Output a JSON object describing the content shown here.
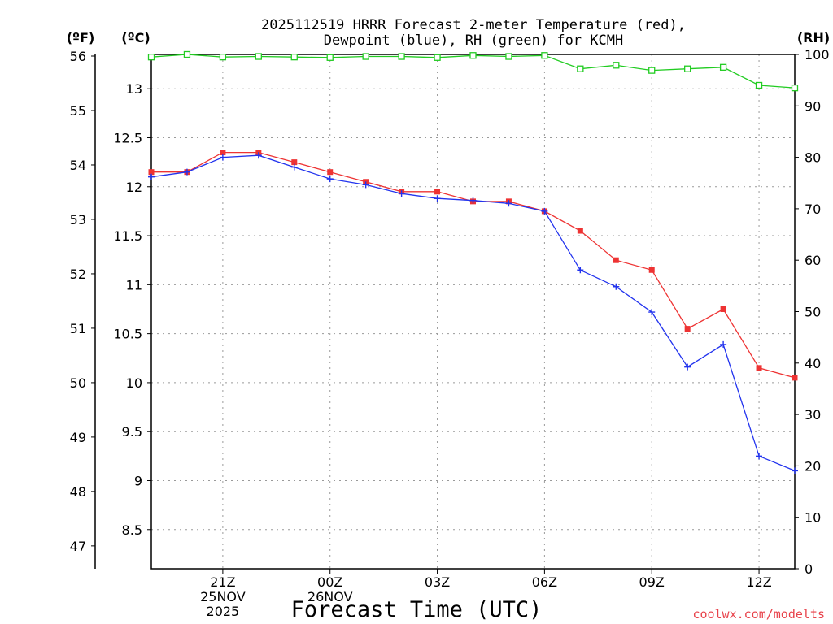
{
  "chart_data": {
    "type": "line",
    "title": [
      "2025112519 HRRR Forecast 2-meter Temperature (red),",
      "Dewpoint (blue), RH (green) for KCMH"
    ],
    "xlabel": "Forecast Time (UTC)",
    "credit": "coolwx.com/modelts",
    "y_left_unit": "(ºC)",
    "y_farenheit_unit": "(ºF)",
    "y_right_unit": "(RH)",
    "x_hours": [
      0,
      1,
      2,
      3,
      4,
      5,
      6,
      7,
      8,
      9,
      10,
      11,
      12,
      13,
      14,
      15,
      16,
      17,
      18
    ],
    "x_ticks": [
      {
        "hour": 2,
        "lines": [
          "21Z",
          "25NOV",
          "2025"
        ]
      },
      {
        "hour": 5,
        "lines": [
          "00Z",
          "26NOV"
        ]
      },
      {
        "hour": 8,
        "lines": [
          "03Z"
        ]
      },
      {
        "hour": 11,
        "lines": [
          "06Z"
        ]
      },
      {
        "hour": 14,
        "lines": [
          "09Z"
        ]
      },
      {
        "hour": 17,
        "lines": [
          "12Z"
        ]
      }
    ],
    "celsius_axis": {
      "min": 8.1,
      "max": 13.35,
      "ticks": [
        8.5,
        9,
        9.5,
        10,
        10.5,
        11,
        11.5,
        12,
        12.5,
        13
      ]
    },
    "fahrenheit_axis": {
      "ticks": [
        47,
        48,
        49,
        50,
        51,
        52,
        53,
        54,
        55,
        56
      ]
    },
    "rh_axis": {
      "min": 0,
      "max": 100,
      "ticks": [
        0,
        10,
        20,
        30,
        40,
        50,
        60,
        70,
        80,
        90,
        100
      ]
    },
    "series": [
      {
        "name": "Temperature",
        "unit": "C",
        "color": "#ee3333",
        "marker": "square",
        "values": [
          12.15,
          12.15,
          12.35,
          12.35,
          12.25,
          12.15,
          12.05,
          11.95,
          11.95,
          11.85,
          11.85,
          11.75,
          11.55,
          11.25,
          11.15,
          10.55,
          10.75,
          10.15,
          10.05
        ]
      },
      {
        "name": "Dewpoint",
        "unit": "C",
        "color": "#2233ee",
        "marker": "plus",
        "values": [
          12.1,
          12.15,
          12.3,
          12.32,
          12.2,
          12.08,
          12.02,
          11.93,
          11.88,
          11.86,
          11.83,
          11.75,
          11.15,
          10.98,
          10.72,
          10.16,
          10.39,
          9.25,
          9.1
        ]
      },
      {
        "name": "RH",
        "unit": "%",
        "color": "#22cc22",
        "marker": "open-square",
        "values": [
          99.5,
          100,
          99.5,
          99.6,
          99.5,
          99.4,
          99.6,
          99.6,
          99.4,
          99.8,
          99.6,
          99.8,
          97.2,
          97.9,
          96.9,
          97.2,
          97.5,
          94,
          93.5
        ]
      }
    ]
  }
}
